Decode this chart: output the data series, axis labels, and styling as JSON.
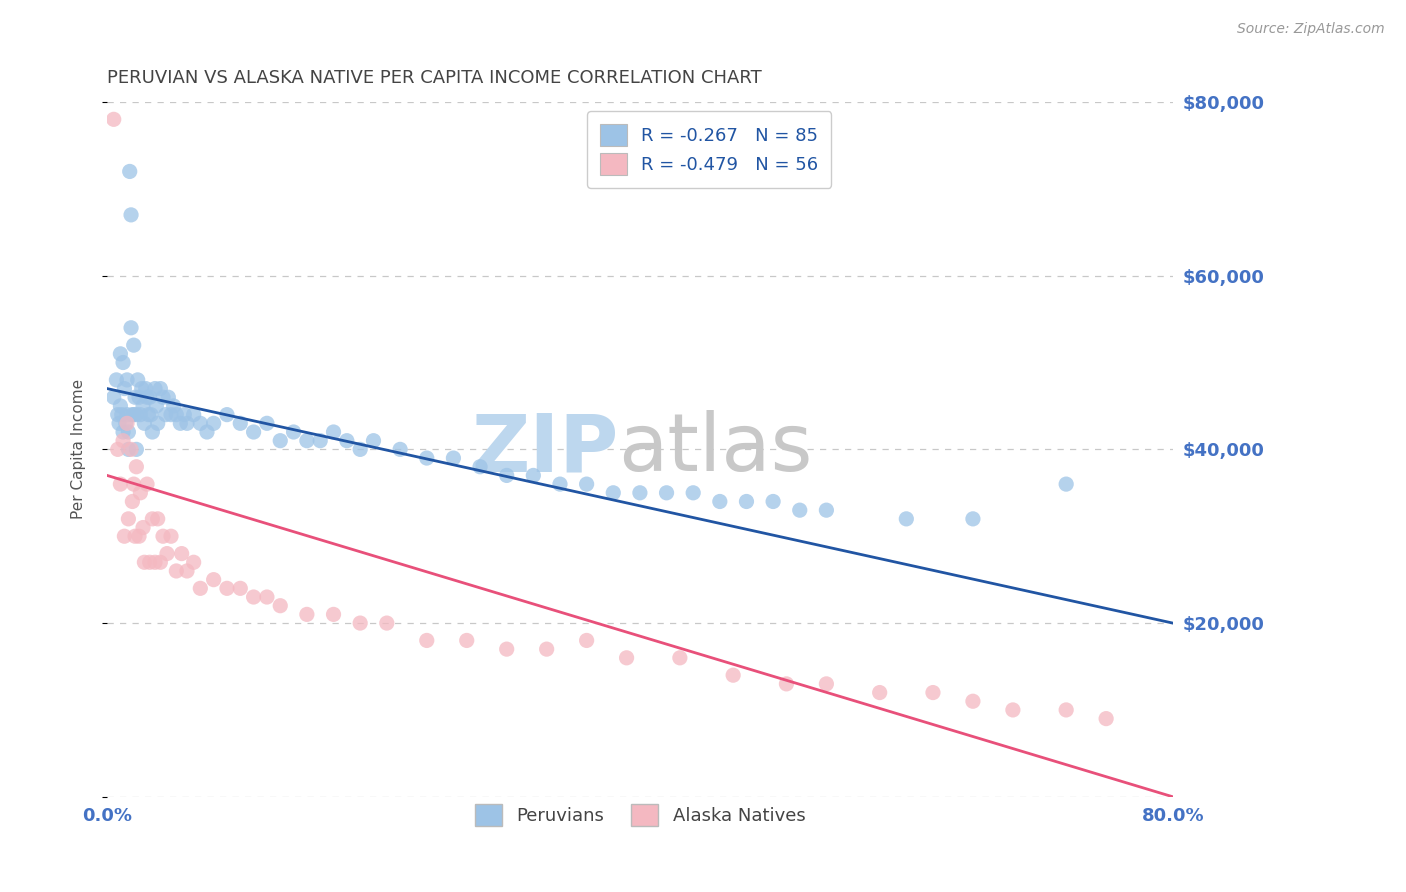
{
  "title": "PERUVIAN VS ALASKA NATIVE PER CAPITA INCOME CORRELATION CHART",
  "source": "Source: ZipAtlas.com",
  "ylabel": "Per Capita Income",
  "xlim": [
    0,
    0.8
  ],
  "ylim": [
    0,
    80000
  ],
  "yticks": [
    0,
    20000,
    40000,
    60000,
    80000
  ],
  "ytick_labels": [
    "",
    "$20,000",
    "$40,000",
    "$60,000",
    "$80,000"
  ],
  "xticks": [
    0.0,
    0.1,
    0.2,
    0.3,
    0.4,
    0.5,
    0.6,
    0.7,
    0.8
  ],
  "xtick_labels_show": [
    "0.0%",
    "80.0%"
  ],
  "background_color": "#ffffff",
  "grid_color": "#c8c8c8",
  "axis_color": "#4472c4",
  "peruvian_color": "#9dc3e6",
  "alaska_color": "#f4b8c1",
  "peruvian_line_color": "#2155a3",
  "alaska_line_color": "#e8507a",
  "legend_text_color": "#2155a3",
  "R_peruvian": -0.267,
  "N_peruvian": 85,
  "R_alaska": -0.479,
  "N_alaska": 56,
  "watermark_zip_color": "#bdd7ee",
  "watermark_atlas_color": "#c8c8c8",
  "peruvian_line_x0": 0.0,
  "peruvian_line_y0": 47000,
  "peruvian_line_x1": 0.8,
  "peruvian_line_y1": 20000,
  "alaska_line_x0": 0.0,
  "alaska_line_y0": 37000,
  "alaska_line_x1": 0.8,
  "alaska_line_y1": 0,
  "peruvian_x": [
    0.005,
    0.007,
    0.008,
    0.009,
    0.01,
    0.01,
    0.011,
    0.012,
    0.012,
    0.013,
    0.014,
    0.015,
    0.015,
    0.016,
    0.016,
    0.017,
    0.018,
    0.018,
    0.019,
    0.02,
    0.02,
    0.021,
    0.022,
    0.022,
    0.023,
    0.024,
    0.025,
    0.026,
    0.027,
    0.028,
    0.029,
    0.03,
    0.031,
    0.032,
    0.033,
    0.034,
    0.036,
    0.037,
    0.038,
    0.04,
    0.042,
    0.044,
    0.046,
    0.048,
    0.05,
    0.052,
    0.055,
    0.058,
    0.06,
    0.065,
    0.07,
    0.075,
    0.08,
    0.09,
    0.1,
    0.11,
    0.12,
    0.13,
    0.14,
    0.15,
    0.16,
    0.17,
    0.18,
    0.19,
    0.2,
    0.22,
    0.24,
    0.26,
    0.28,
    0.3,
    0.32,
    0.34,
    0.36,
    0.38,
    0.4,
    0.42,
    0.44,
    0.46,
    0.48,
    0.5,
    0.52,
    0.54,
    0.6,
    0.65,
    0.72
  ],
  "peruvian_y": [
    46000,
    48000,
    44000,
    43000,
    45000,
    51000,
    44000,
    50000,
    42000,
    47000,
    43000,
    48000,
    44000,
    42000,
    40000,
    72000,
    67000,
    54000,
    44000,
    44000,
    52000,
    46000,
    44000,
    40000,
    48000,
    46000,
    44000,
    47000,
    45000,
    43000,
    47000,
    46000,
    44000,
    46000,
    44000,
    42000,
    47000,
    45000,
    43000,
    47000,
    46000,
    44000,
    46000,
    44000,
    45000,
    44000,
    43000,
    44000,
    43000,
    44000,
    43000,
    42000,
    43000,
    44000,
    43000,
    42000,
    43000,
    41000,
    42000,
    41000,
    41000,
    42000,
    41000,
    40000,
    41000,
    40000,
    39000,
    39000,
    38000,
    37000,
    37000,
    36000,
    36000,
    35000,
    35000,
    35000,
    35000,
    34000,
    34000,
    34000,
    33000,
    33000,
    32000,
    32000,
    36000
  ],
  "alaska_x": [
    0.005,
    0.008,
    0.01,
    0.012,
    0.013,
    0.015,
    0.016,
    0.018,
    0.019,
    0.02,
    0.021,
    0.022,
    0.024,
    0.025,
    0.027,
    0.028,
    0.03,
    0.032,
    0.034,
    0.036,
    0.038,
    0.04,
    0.042,
    0.045,
    0.048,
    0.052,
    0.056,
    0.06,
    0.065,
    0.07,
    0.08,
    0.09,
    0.1,
    0.11,
    0.12,
    0.13,
    0.15,
    0.17,
    0.19,
    0.21,
    0.24,
    0.27,
    0.3,
    0.33,
    0.36,
    0.39,
    0.43,
    0.47,
    0.51,
    0.54,
    0.58,
    0.62,
    0.65,
    0.68,
    0.72,
    0.75
  ],
  "alaska_y": [
    78000,
    40000,
    36000,
    41000,
    30000,
    43000,
    32000,
    40000,
    34000,
    36000,
    30000,
    38000,
    30000,
    35000,
    31000,
    27000,
    36000,
    27000,
    32000,
    27000,
    32000,
    27000,
    30000,
    28000,
    30000,
    26000,
    28000,
    26000,
    27000,
    24000,
    25000,
    24000,
    24000,
    23000,
    23000,
    22000,
    21000,
    21000,
    20000,
    20000,
    18000,
    18000,
    17000,
    17000,
    18000,
    16000,
    16000,
    14000,
    13000,
    13000,
    12000,
    12000,
    11000,
    10000,
    10000,
    9000
  ]
}
